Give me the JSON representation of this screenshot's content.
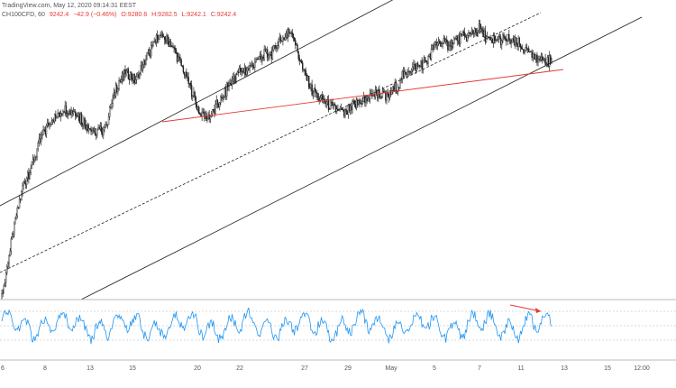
{
  "header": {
    "source": "TradingView.com, May 12, 2020 09:14:31 EEST",
    "symbol": "CH100CFD, 60",
    "last": "9242.4",
    "change": "−42.9 (−0.46%)",
    "o": "O:9280.6",
    "h": "H:9282.5",
    "l": "L:9242.1",
    "c": "C:9242.4"
  },
  "colors": {
    "candle": "#222222",
    "channel": "#222222",
    "trendline": "#e53935",
    "oscillator": "#2196f3",
    "arrow": "#e53935",
    "up": "#26a69a",
    "down": "#ef5350"
  },
  "chart_data": {
    "type": "candlestick",
    "x_ticks": [
      "6",
      "8",
      "13",
      "15",
      "20",
      "22",
      "27",
      "29",
      "May",
      "5",
      "7",
      "11",
      "13",
      "15",
      "12:00"
    ],
    "price_path": [
      [
        0,
        8780
      ],
      [
        10,
        8900
      ],
      [
        20,
        9000
      ],
      [
        30,
        9050
      ],
      [
        40,
        9110
      ],
      [
        50,
        9140
      ],
      [
        60,
        9155
      ],
      [
        70,
        9150
      ],
      [
        80,
        9130
      ],
      [
        90,
        9105
      ],
      [
        100,
        9120
      ],
      [
        110,
        9200
      ],
      [
        120,
        9230
      ],
      [
        130,
        9215
      ],
      [
        140,
        9260
      ],
      [
        150,
        9300
      ],
      [
        160,
        9295
      ],
      [
        170,
        9260
      ],
      [
        180,
        9210
      ],
      [
        190,
        9150
      ],
      [
        200,
        9140
      ],
      [
        210,
        9170
      ],
      [
        220,
        9210
      ],
      [
        230,
        9230
      ],
      [
        240,
        9240
      ],
      [
        250,
        9260
      ],
      [
        260,
        9270
      ],
      [
        270,
        9300
      ],
      [
        280,
        9310
      ],
      [
        290,
        9235
      ],
      [
        300,
        9190
      ],
      [
        310,
        9170
      ],
      [
        320,
        9160
      ],
      [
        330,
        9145
      ],
      [
        340,
        9165
      ],
      [
        350,
        9175
      ],
      [
        360,
        9190
      ],
      [
        370,
        9180
      ],
      [
        380,
        9200
      ],
      [
        390,
        9230
      ],
      [
        400,
        9240
      ],
      [
        410,
        9255
      ],
      [
        420,
        9290
      ],
      [
        430,
        9285
      ],
      [
        440,
        9295
      ],
      [
        450,
        9305
      ],
      [
        460,
        9315
      ],
      [
        470,
        9290
      ],
      [
        480,
        9296
      ],
      [
        490,
        9292
      ],
      [
        500,
        9282
      ],
      [
        510,
        9265
      ],
      [
        520,
        9255
      ],
      [
        530,
        9251
      ]
    ],
    "oscillator": {
      "levels": [
        30,
        50,
        70
      ]
    }
  }
}
